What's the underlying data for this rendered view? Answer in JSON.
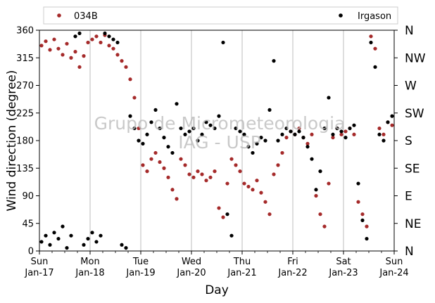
{
  "chart_data": {
    "type": "scatter",
    "xlabel": "Day",
    "ylabel": "Wind direction (degree)",
    "ylim": [
      0,
      360
    ],
    "yticks": [
      0,
      45,
      90,
      135,
      180,
      225,
      270,
      315,
      360
    ],
    "xlim": [
      "2021-01-17",
      "2021-01-24"
    ],
    "xticks_major": [
      {
        "date": "2021-01-17",
        "line1": "Sun",
        "line2": "Jan-17"
      },
      {
        "date": "2021-01-18",
        "line1": "Mon",
        "line2": "Jan-18"
      },
      {
        "date": "2021-01-19",
        "line1": "Tue",
        "line2": "Jan-19"
      },
      {
        "date": "2021-01-20",
        "line1": "Wed",
        "line2": "Jan-20"
      },
      {
        "date": "2021-01-21",
        "line1": "Thu",
        "line2": "Jan-21"
      },
      {
        "date": "2021-01-22",
        "line1": "Fri",
        "line2": "Jan-22"
      },
      {
        "date": "2021-01-23",
        "line1": "Sat",
        "line2": "Jan-23"
      },
      {
        "date": "2021-01-24",
        "line1": "Sun",
        "line2": "Jan-24"
      }
    ],
    "compass_labels": [
      "N",
      "NE",
      "E",
      "SE",
      "S",
      "SW",
      "W",
      "NW",
      "N"
    ],
    "grid": "vertical at day boundaries",
    "legend_placement": "top, above plot",
    "watermark_lines": [
      "Grupo de Micrometeorologia",
      "IAG - USP"
    ],
    "series": [
      {
        "name": "034B",
        "color": "#a52a2a",
        "points": [
          [
            "2021-01-17T01:00",
            335
          ],
          [
            "2021-01-17T03:00",
            342
          ],
          [
            "2021-01-17T05:00",
            328
          ],
          [
            "2021-01-17T07:00",
            345
          ],
          [
            "2021-01-17T09:00",
            330
          ],
          [
            "2021-01-17T11:00",
            320
          ],
          [
            "2021-01-17T13:00",
            338
          ],
          [
            "2021-01-17T15:00",
            315
          ],
          [
            "2021-01-17T17:00",
            325
          ],
          [
            "2021-01-17T19:00",
            300
          ],
          [
            "2021-01-17T21:00",
            318
          ],
          [
            "2021-01-17T23:00",
            340
          ],
          [
            "2021-01-18T01:00",
            345
          ],
          [
            "2021-01-18T03:00",
            350
          ],
          [
            "2021-01-18T05:00",
            340
          ],
          [
            "2021-01-18T07:00",
            352
          ],
          [
            "2021-01-18T09:00",
            335
          ],
          [
            "2021-01-18T11:00",
            330
          ],
          [
            "2021-01-18T13:00",
            320
          ],
          [
            "2021-01-18T15:00",
            310
          ],
          [
            "2021-01-18T17:00",
            300
          ],
          [
            "2021-01-18T19:00",
            280
          ],
          [
            "2021-01-18T21:00",
            250
          ],
          [
            "2021-01-18T23:00",
            200
          ],
          [
            "2021-01-19T01:00",
            140
          ],
          [
            "2021-01-19T03:00",
            130
          ],
          [
            "2021-01-19T05:00",
            150
          ],
          [
            "2021-01-19T07:00",
            160
          ],
          [
            "2021-01-19T09:00",
            145
          ],
          [
            "2021-01-19T11:00",
            135
          ],
          [
            "2021-01-19T13:00",
            120
          ],
          [
            "2021-01-19T15:00",
            100
          ],
          [
            "2021-01-19T17:00",
            85
          ],
          [
            "2021-01-19T19:00",
            150
          ],
          [
            "2021-01-19T21:00",
            140
          ],
          [
            "2021-01-19T23:00",
            125
          ],
          [
            "2021-01-20T01:00",
            120
          ],
          [
            "2021-01-20T03:00",
            130
          ],
          [
            "2021-01-20T05:00",
            125
          ],
          [
            "2021-01-20T07:00",
            115
          ],
          [
            "2021-01-20T09:00",
            120
          ],
          [
            "2021-01-20T11:00",
            130
          ],
          [
            "2021-01-20T13:00",
            70
          ],
          [
            "2021-01-20T15:00",
            55
          ],
          [
            "2021-01-20T17:00",
            110
          ],
          [
            "2021-01-20T19:00",
            150
          ],
          [
            "2021-01-20T21:00",
            140
          ],
          [
            "2021-01-20T23:00",
            130
          ],
          [
            "2021-01-21T01:00",
            110
          ],
          [
            "2021-01-21T03:00",
            105
          ],
          [
            "2021-01-21T05:00",
            100
          ],
          [
            "2021-01-21T07:00",
            115
          ],
          [
            "2021-01-21T09:00",
            95
          ],
          [
            "2021-01-21T11:00",
            80
          ],
          [
            "2021-01-21T13:00",
            60
          ],
          [
            "2021-01-21T15:00",
            125
          ],
          [
            "2021-01-21T17:00",
            140
          ],
          [
            "2021-01-21T19:00",
            160
          ],
          [
            "2021-01-21T21:00",
            185
          ],
          [
            "2021-01-21T23:00",
            195
          ],
          [
            "2021-01-22T01:00",
            190
          ],
          [
            "2021-01-22T03:00",
            200
          ],
          [
            "2021-01-22T05:00",
            185
          ],
          [
            "2021-01-22T07:00",
            175
          ],
          [
            "2021-01-22T09:00",
            190
          ],
          [
            "2021-01-22T11:00",
            90
          ],
          [
            "2021-01-22T13:00",
            60
          ],
          [
            "2021-01-22T15:00",
            40
          ],
          [
            "2021-01-22T17:00",
            110
          ],
          [
            "2021-01-22T19:00",
            185
          ],
          [
            "2021-01-22T21:00",
            200
          ],
          [
            "2021-01-22T23:00",
            190
          ],
          [
            "2021-01-23T01:00",
            195
          ],
          [
            "2021-01-23T03:00",
            200
          ],
          [
            "2021-01-23T05:00",
            190
          ],
          [
            "2021-01-23T07:00",
            80
          ],
          [
            "2021-01-23T09:00",
            60
          ],
          [
            "2021-01-23T11:00",
            40
          ],
          [
            "2021-01-23T13:00",
            350
          ],
          [
            "2021-01-23T15:00",
            330
          ],
          [
            "2021-01-23T17:00",
            200
          ],
          [
            "2021-01-23T19:00",
            190
          ],
          [
            "2021-01-23T21:00",
            210
          ],
          [
            "2021-01-23T23:00",
            205
          ]
        ]
      },
      {
        "name": "Irgason",
        "color": "#000000",
        "points": [
          [
            "2021-01-17T01:00",
            15
          ],
          [
            "2021-01-17T03:00",
            25
          ],
          [
            "2021-01-17T05:00",
            10
          ],
          [
            "2021-01-17T07:00",
            30
          ],
          [
            "2021-01-17T09:00",
            20
          ],
          [
            "2021-01-17T11:00",
            40
          ],
          [
            "2021-01-17T13:00",
            5
          ],
          [
            "2021-01-17T15:00",
            25
          ],
          [
            "2021-01-17T17:00",
            350
          ],
          [
            "2021-01-17T19:00",
            355
          ],
          [
            "2021-01-17T21:00",
            10
          ],
          [
            "2021-01-17T23:00",
            20
          ],
          [
            "2021-01-18T01:00",
            30
          ],
          [
            "2021-01-18T03:00",
            15
          ],
          [
            "2021-01-18T05:00",
            25
          ],
          [
            "2021-01-18T07:00",
            355
          ],
          [
            "2021-01-18T09:00",
            350
          ],
          [
            "2021-01-18T11:00",
            345
          ],
          [
            "2021-01-18T13:00",
            340
          ],
          [
            "2021-01-18T15:00",
            10
          ],
          [
            "2021-01-18T17:00",
            5
          ],
          [
            "2021-01-18T19:00",
            220
          ],
          [
            "2021-01-18T21:00",
            200
          ],
          [
            "2021-01-18T23:00",
            180
          ],
          [
            "2021-01-19T01:00",
            175
          ],
          [
            "2021-01-19T03:00",
            190
          ],
          [
            "2021-01-19T05:00",
            210
          ],
          [
            "2021-01-19T07:00",
            230
          ],
          [
            "2021-01-19T09:00",
            200
          ],
          [
            "2021-01-19T11:00",
            185
          ],
          [
            "2021-01-19T13:00",
            170
          ],
          [
            "2021-01-19T15:00",
            160
          ],
          [
            "2021-01-19T17:00",
            240
          ],
          [
            "2021-01-19T19:00",
            200
          ],
          [
            "2021-01-19T21:00",
            190
          ],
          [
            "2021-01-19T23:00",
            195
          ],
          [
            "2021-01-20T01:00",
            200
          ],
          [
            "2021-01-20T03:00",
            180
          ],
          [
            "2021-01-20T05:00",
            190
          ],
          [
            "2021-01-20T07:00",
            210
          ],
          [
            "2021-01-20T09:00",
            205
          ],
          [
            "2021-01-20T11:00",
            200
          ],
          [
            "2021-01-20T13:00",
            220
          ],
          [
            "2021-01-20T15:00",
            340
          ],
          [
            "2021-01-20T17:00",
            60
          ],
          [
            "2021-01-20T19:00",
            25
          ],
          [
            "2021-01-20T21:00",
            200
          ],
          [
            "2021-01-20T23:00",
            195
          ],
          [
            "2021-01-21T01:00",
            190
          ],
          [
            "2021-01-21T03:00",
            170
          ],
          [
            "2021-01-21T05:00",
            160
          ],
          [
            "2021-01-21T07:00",
            175
          ],
          [
            "2021-01-21T09:00",
            185
          ],
          [
            "2021-01-21T11:00",
            180
          ],
          [
            "2021-01-21T13:00",
            230
          ],
          [
            "2021-01-21T15:00",
            310
          ],
          [
            "2021-01-21T17:00",
            180
          ],
          [
            "2021-01-21T19:00",
            190
          ],
          [
            "2021-01-21T21:00",
            200
          ],
          [
            "2021-01-21T23:00",
            195
          ],
          [
            "2021-01-22T01:00",
            190
          ],
          [
            "2021-01-22T03:00",
            195
          ],
          [
            "2021-01-22T05:00",
            185
          ],
          [
            "2021-01-22T07:00",
            170
          ],
          [
            "2021-01-22T09:00",
            150
          ],
          [
            "2021-01-22T11:00",
            100
          ],
          [
            "2021-01-22T13:00",
            130
          ],
          [
            "2021-01-22T15:00",
            200
          ],
          [
            "2021-01-22T17:00",
            250
          ],
          [
            "2021-01-22T19:00",
            190
          ],
          [
            "2021-01-22T21:00",
            200
          ],
          [
            "2021-01-22T23:00",
            195
          ],
          [
            "2021-01-23T01:00",
            185
          ],
          [
            "2021-01-23T03:00",
            200
          ],
          [
            "2021-01-23T05:00",
            205
          ],
          [
            "2021-01-23T07:00",
            110
          ],
          [
            "2021-01-23T09:00",
            50
          ],
          [
            "2021-01-23T11:00",
            20
          ],
          [
            "2021-01-23T13:00",
            340
          ],
          [
            "2021-01-23T15:00",
            300
          ],
          [
            "2021-01-23T17:00",
            190
          ],
          [
            "2021-01-23T19:00",
            180
          ],
          [
            "2021-01-23T21:00",
            210
          ],
          [
            "2021-01-23T23:00",
            220
          ]
        ]
      }
    ]
  }
}
